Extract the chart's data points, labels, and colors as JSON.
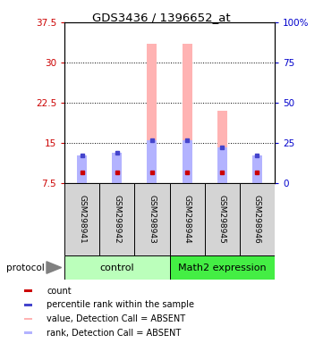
{
  "title": "GDS3436 / 1396652_at",
  "samples": [
    "GSM298941",
    "GSM298942",
    "GSM298943",
    "GSM298944",
    "GSM298945",
    "GSM298946"
  ],
  "ylim_left": [
    7.5,
    37.5
  ],
  "yticks_left": [
    7.5,
    15.0,
    22.5,
    30.0,
    37.5
  ],
  "ytick_labels_left": [
    "7.5",
    "15",
    "22.5",
    "30",
    "37.5"
  ],
  "ytick_labels_right": [
    "0",
    "25",
    "50",
    "75",
    "100%"
  ],
  "value_bars": [
    10.5,
    11.0,
    33.5,
    33.5,
    21.0,
    10.5
  ],
  "rank_bars": [
    12.8,
    13.2,
    15.5,
    15.5,
    14.2,
    12.8
  ],
  "red_marker_y": [
    9.5,
    9.5,
    9.5,
    9.5,
    9.5,
    9.5
  ],
  "blue_marker_y": [
    12.8,
    13.2,
    15.5,
    15.5,
    14.2,
    12.8
  ],
  "bar_bottom": 7.5,
  "count_color": "#cc0000",
  "blue_color": "#4444cc",
  "value_bar_color": "#ffb3b3",
  "rank_bar_color": "#b3b3ff",
  "axis_left_color": "#cc0000",
  "axis_right_color": "#0000cc",
  "bar_width": 0.28,
  "bg_color": "#ffffff",
  "plot_bg": "#ffffff",
  "sample_bg": "#d4d4d4",
  "ctrl_color": "#bbffbb",
  "math2_color": "#44ee44",
  "grid_yticks": [
    15.0,
    22.5,
    30.0
  ],
  "legend_labels": [
    "count",
    "percentile rank within the sample",
    "value, Detection Call = ABSENT",
    "rank, Detection Call = ABSENT"
  ],
  "legend_colors": [
    "#cc0000",
    "#4444cc",
    "#ffb3b3",
    "#b3b3ff"
  ]
}
